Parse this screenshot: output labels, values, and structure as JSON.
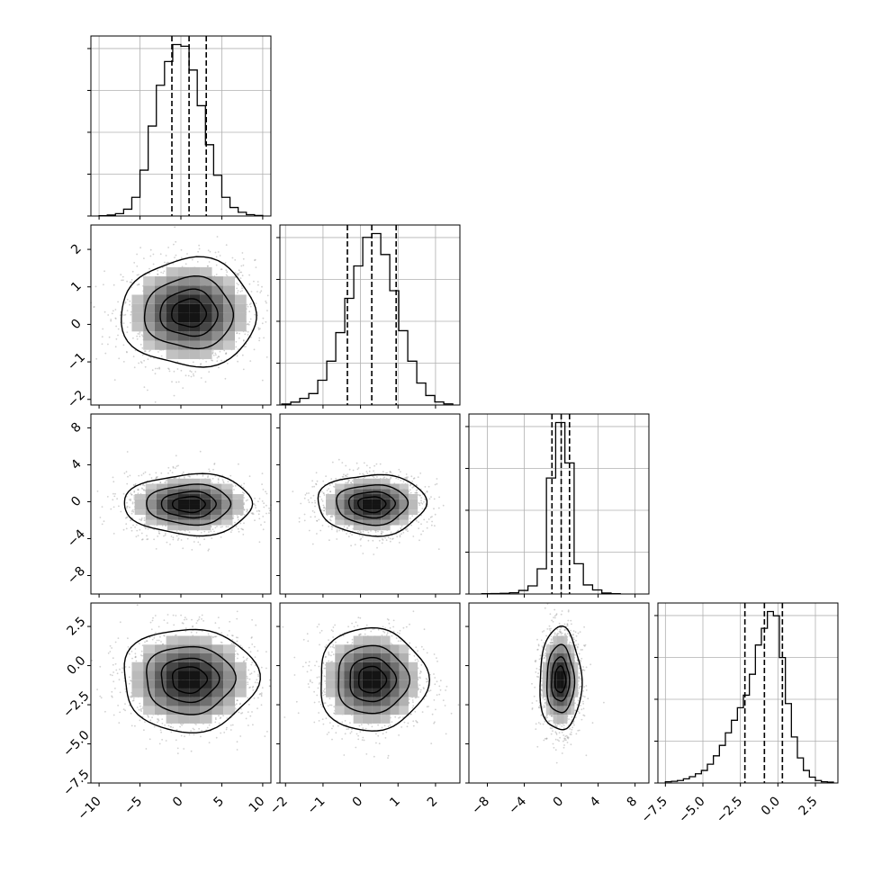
{
  "figure_type": "corner plot",
  "colors": {
    "foreground": "#000000",
    "grid": "#b0b0b0",
    "scatter_points": "#9a9a9a",
    "background": "#ffffff"
  },
  "chart_data": [
    {
      "type": "histogram",
      "panel": "1,1",
      "variable_index": 0,
      "xlim": [
        -11,
        11
      ],
      "grid": true,
      "quantile_lines": [
        -1.1,
        1.0,
        3.1
      ],
      "bins": {
        "edges": [
          -10,
          -9,
          -8,
          -7,
          -6,
          -5,
          -4,
          -3,
          -2,
          -1,
          0,
          1,
          2,
          3,
          4,
          5,
          6,
          7,
          8,
          9,
          10
        ],
        "counts": [
          2,
          6,
          14,
          40,
          110,
          270,
          530,
          770,
          910,
          1010,
          1000,
          860,
          650,
          420,
          240,
          110,
          50,
          22,
          8,
          3
        ]
      },
      "xticks": [],
      "yticks_count": 5
    },
    {
      "type": "histogram",
      "panel": "2,2",
      "variable_index": 1,
      "xlim": [
        -2.15,
        2.65
      ],
      "grid": true,
      "quantile_lines": [
        -0.35,
        0.3,
        0.95
      ],
      "bins": {
        "edges": [
          -2.1,
          -1.86,
          -1.62,
          -1.38,
          -1.14,
          -0.9,
          -0.66,
          -0.42,
          -0.18,
          0.06,
          0.3,
          0.54,
          0.78,
          1.02,
          1.26,
          1.5,
          1.74,
          1.98,
          2.22,
          2.46
        ],
        "counts": [
          5,
          15,
          35,
          60,
          130,
          230,
          380,
          560,
          730,
          880,
          900,
          790,
          600,
          390,
          230,
          115,
          50,
          16,
          6
        ]
      }
    },
    {
      "type": "histogram",
      "panel": "3,3",
      "variable_index": 2,
      "xlim": [
        -10,
        9.5
      ],
      "grid": true,
      "quantile_lines": [
        -1.0,
        0.0,
        0.9
      ],
      "bins": {
        "edges": [
          -8.6,
          -7.6,
          -6.6,
          -5.6,
          -4.6,
          -3.6,
          -2.6,
          -1.6,
          -0.6,
          0.4,
          1.4,
          2.4,
          3.4,
          4.4,
          5.4,
          6.4
        ],
        "counts": [
          3,
          4,
          7,
          12,
          35,
          80,
          250,
          1150,
          1700,
          1300,
          300,
          90,
          40,
          10,
          3
        ]
      }
    },
    {
      "type": "histogram",
      "panel": "4,4",
      "variable_index": 3,
      "xlim": [
        -8,
        4
      ],
      "grid": true,
      "quantile_lines": [
        -2.2,
        -0.9,
        0.3
      ],
      "bins": {
        "edges": [
          -7.5,
          -7.1,
          -6.7,
          -6.3,
          -5.9,
          -5.5,
          -5.1,
          -4.7,
          -4.3,
          -3.9,
          -3.5,
          -3.1,
          -2.7,
          -2.3,
          -1.9,
          -1.5,
          -1.1,
          -0.7,
          -0.3,
          0.1,
          0.5,
          0.9,
          1.3,
          1.7,
          2.1,
          2.5,
          2.9,
          3.3,
          3.7
        ],
        "counts": [
          3,
          4,
          6,
          10,
          15,
          22,
          30,
          45,
          65,
          90,
          120,
          150,
          180,
          210,
          260,
          330,
          370,
          410,
          400,
          300,
          190,
          110,
          60,
          30,
          14,
          6,
          3,
          2
        ]
      }
    },
    {
      "type": "2d-density",
      "panel": "2,1",
      "x_variable": 0,
      "y_variable": 1,
      "xlim": [
        -11,
        11
      ],
      "ylim": [
        -2.15,
        2.65
      ],
      "center": [
        1.0,
        0.3
      ],
      "spread": [
        4.0,
        0.7
      ],
      "contour_levels": [
        0.12,
        0.4,
        0.68,
        0.87
      ]
    },
    {
      "type": "2d-density",
      "panel": "3,1",
      "x_variable": 0,
      "y_variable": 2,
      "xlim": [
        -11,
        11
      ],
      "ylim": [
        -10,
        9.5
      ],
      "center": [
        1.0,
        -0.3
      ],
      "spread": [
        3.8,
        1.6
      ],
      "contour_levels": [
        0.12,
        0.4,
        0.68,
        0.87
      ]
    },
    {
      "type": "2d-density",
      "panel": "3,2",
      "x_variable": 1,
      "y_variable": 2,
      "xlim": [
        -2.15,
        2.65
      ],
      "ylim": [
        -10,
        9.5
      ],
      "center": [
        0.3,
        -0.3
      ],
      "spread": [
        0.7,
        1.6
      ],
      "contour_levels": [
        0.12,
        0.4,
        0.68,
        0.87
      ]
    },
    {
      "type": "2d-density",
      "panel": "4,1",
      "x_variable": 0,
      "y_variable": 3,
      "xlim": [
        -11,
        11
      ],
      "ylim": [
        -7.5,
        4
      ],
      "center": [
        1.0,
        -0.9
      ],
      "spread": [
        4.0,
        1.6
      ],
      "contour_levels": [
        0.12,
        0.4,
        0.68,
        0.87
      ]
    },
    {
      "type": "2d-density",
      "panel": "4,2",
      "x_variable": 1,
      "y_variable": 3,
      "xlim": [
        -2.15,
        2.65
      ],
      "ylim": [
        -7.5,
        4
      ],
      "center": [
        0.3,
        -0.9
      ],
      "spread": [
        0.7,
        1.6
      ],
      "contour_levels": [
        0.12,
        0.4,
        0.68,
        0.87
      ]
    },
    {
      "type": "2d-density",
      "panel": "4,3",
      "x_variable": 2,
      "y_variable": 3,
      "xlim": [
        -10,
        9.5
      ],
      "ylim": [
        -7.5,
        4
      ],
      "center": [
        -0.1,
        -0.9
      ],
      "spread": [
        1.1,
        1.6
      ],
      "contour_levels": [
        0.12,
        0.4,
        0.68,
        0.87
      ]
    }
  ],
  "axes": {
    "v0": {
      "ticks": [
        -10,
        -5,
        0,
        5,
        10
      ],
      "labels": [
        "−10",
        "−5",
        "0",
        "5",
        "10"
      ]
    },
    "v1_x": {
      "ticks": [
        -2,
        -1,
        0,
        1,
        2
      ],
      "labels": [
        "−2",
        "−1",
        "0",
        "1",
        "2"
      ]
    },
    "v1_y": {
      "ticks": [
        2,
        1,
        0,
        -1,
        -2
      ],
      "labels": [
        "2",
        "1",
        "0",
        "−1",
        "−2"
      ]
    },
    "v2_x": {
      "ticks": [
        -8,
        -4,
        0,
        4,
        8
      ],
      "labels": [
        "−8",
        "−4",
        "0",
        "4",
        "8"
      ]
    },
    "v2_y": {
      "ticks": [
        8,
        4,
        0,
        -4,
        -8
      ],
      "labels": [
        "8",
        "4",
        "0",
        "−4",
        "−8"
      ]
    },
    "v3_x": {
      "ticks": [
        -7.5,
        -5.0,
        -2.5,
        0.0,
        2.5
      ],
      "labels": [
        "−7.5",
        "−5.0",
        "−2.5",
        "0.0",
        "2.5"
      ]
    },
    "v3_y": {
      "ticks": [
        2.5,
        0.0,
        -2.5,
        -5.0,
        -7.5
      ],
      "labels": [
        "2.5",
        "0.0",
        "−2.5",
        "−5.0",
        "−7.5"
      ]
    }
  }
}
